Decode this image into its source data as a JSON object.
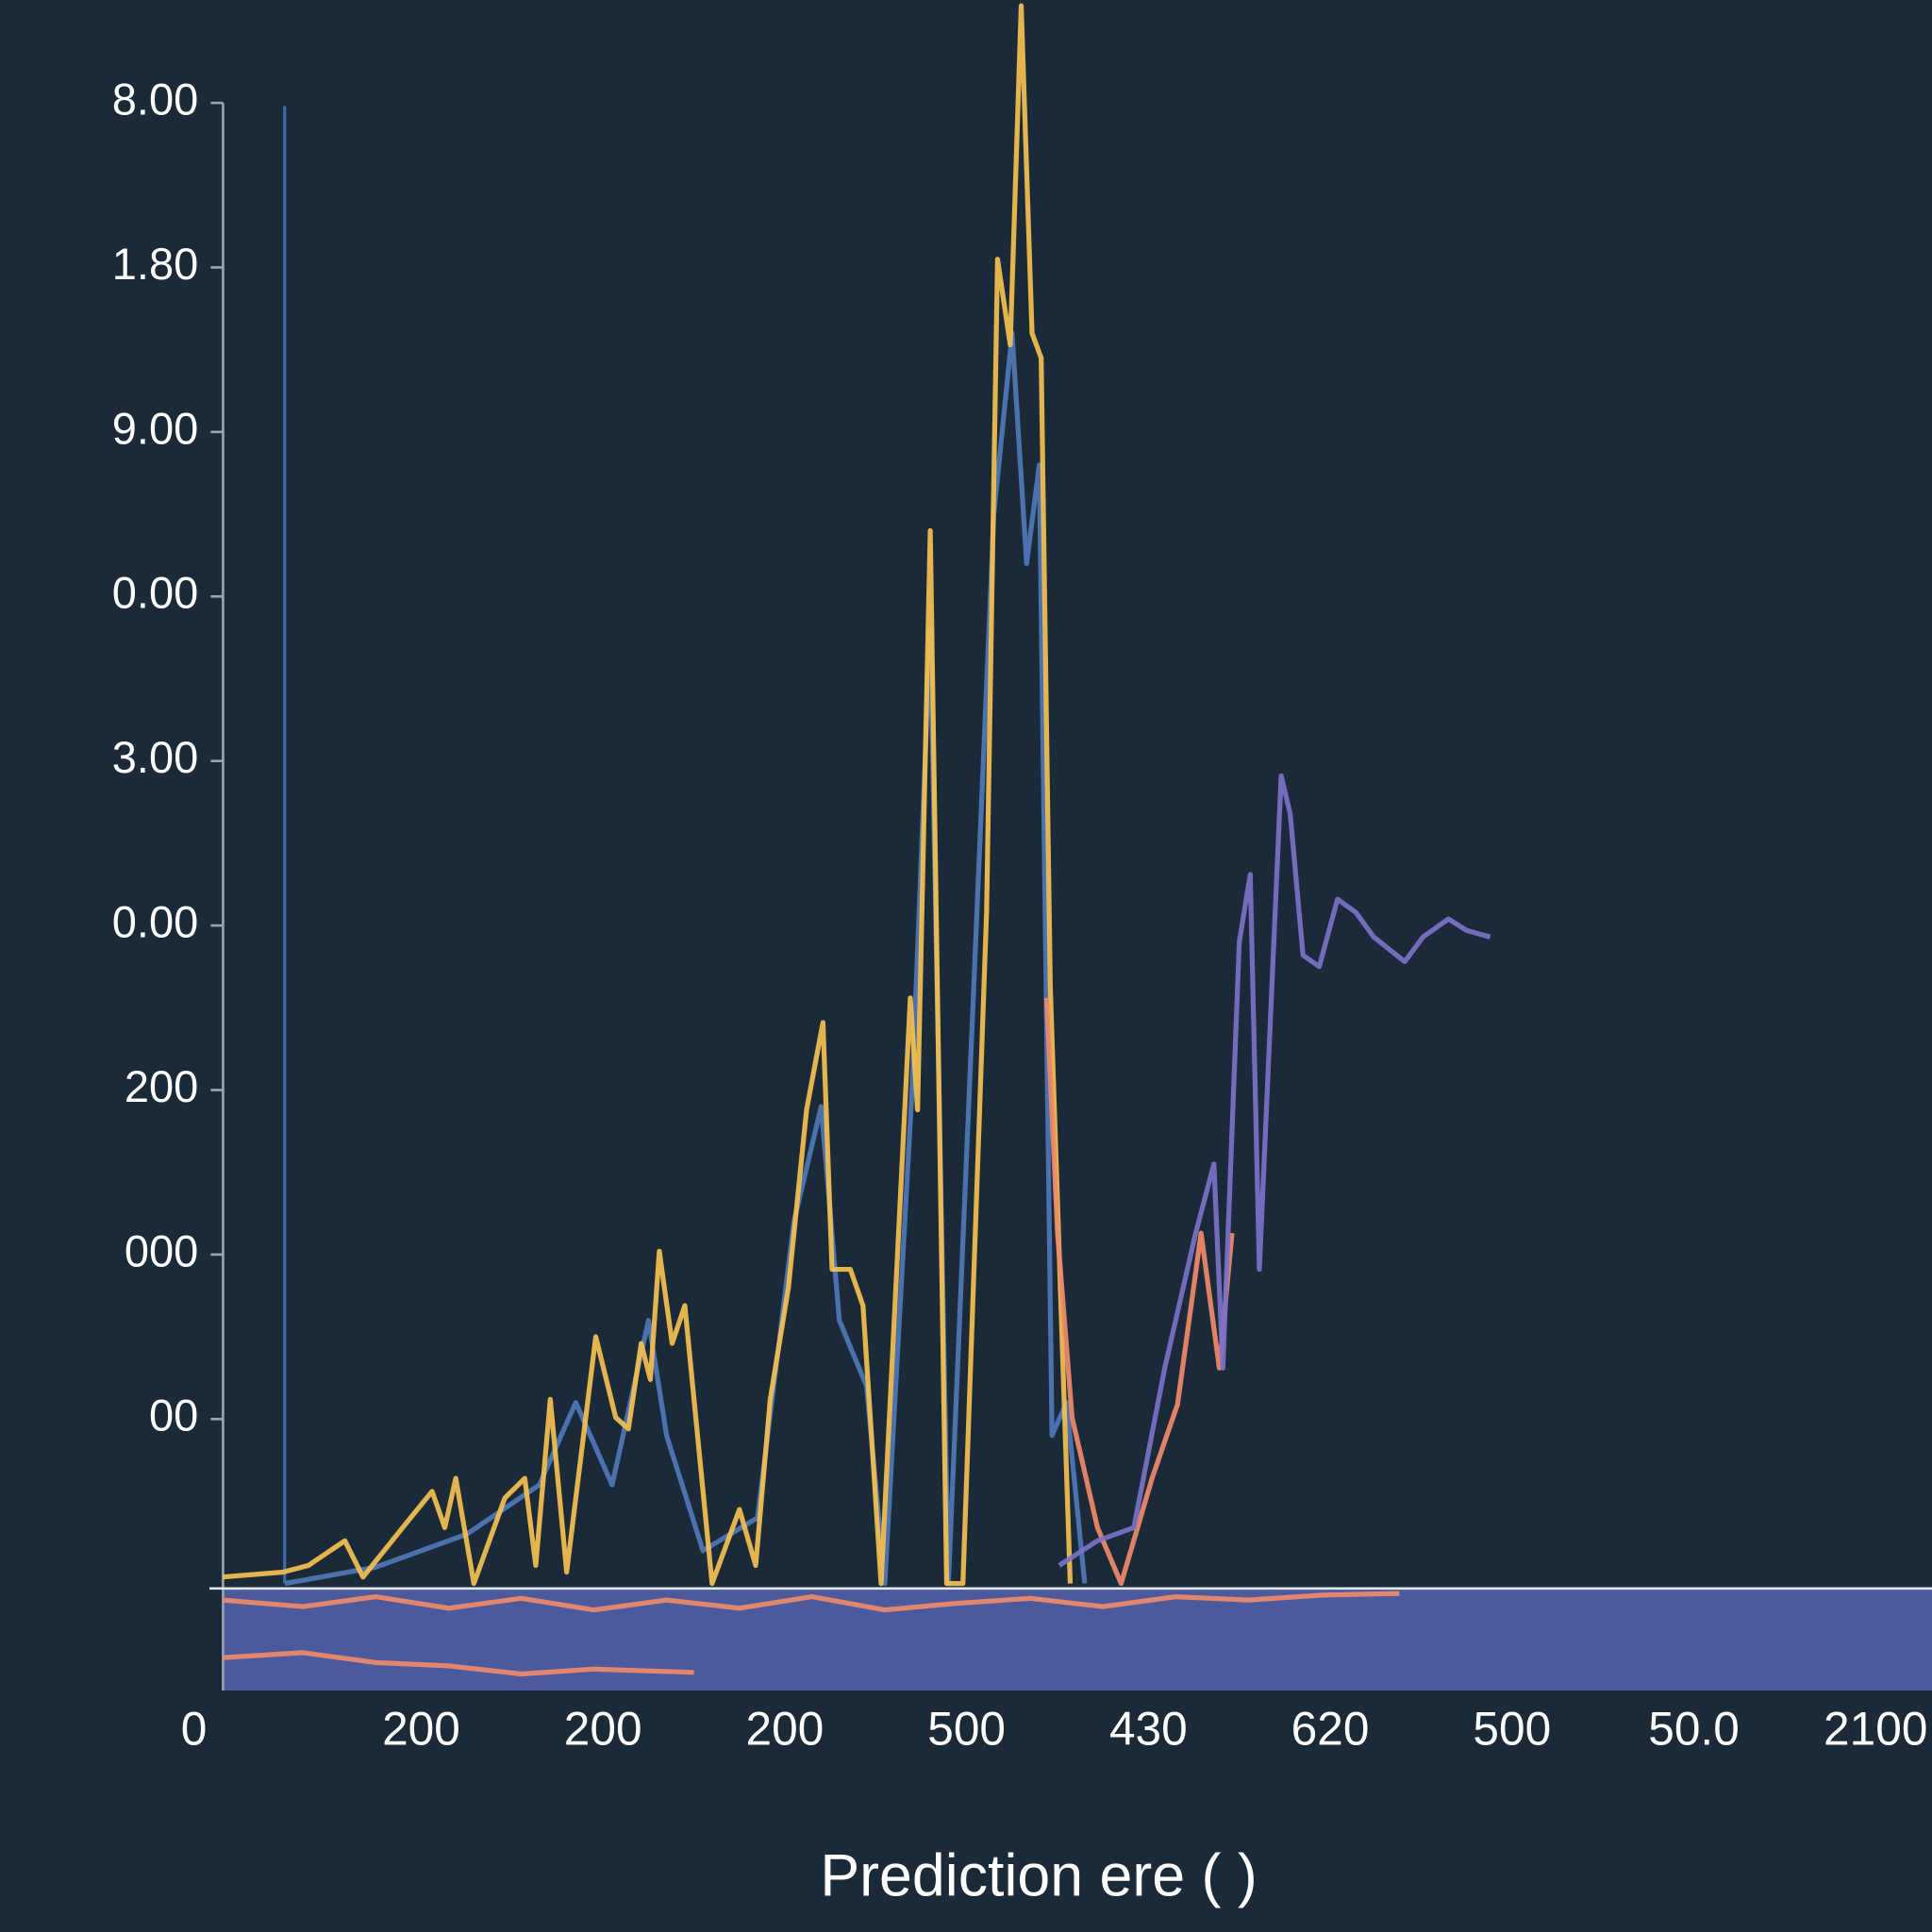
{
  "chart_data": {
    "type": "line",
    "xlabel": "Prediction ere ( )",
    "background": "#1b2a38",
    "xlim": [
      0.16,
      9.56
    ],
    "ylim": [
      -0.65,
      9.6
    ],
    "xticks": [
      {
        "value": 0,
        "label": "0"
      },
      {
        "value": 1.25,
        "label": "200"
      },
      {
        "value": 2.25,
        "label": "200"
      },
      {
        "value": 3.25,
        "label": "200"
      },
      {
        "value": 4.25,
        "label": "500"
      },
      {
        "value": 5.25,
        "label": "430"
      },
      {
        "value": 6.25,
        "label": "620"
      },
      {
        "value": 7.25,
        "label": "500"
      },
      {
        "value": 8.25,
        "label": "50.0"
      },
      {
        "value": 9.25,
        "label": "2100"
      }
    ],
    "yticks": [
      {
        "value": 1,
        "label": "00"
      },
      {
        "value": 2,
        "label": "000"
      },
      {
        "value": 3,
        "label": "200"
      },
      {
        "value": 4,
        "label": "0.00"
      },
      {
        "value": 5,
        "label": "3.00"
      },
      {
        "value": 6,
        "label": "0.00"
      },
      {
        "value": 7,
        "label": "9.00"
      },
      {
        "value": 8,
        "label": "1.80"
      },
      {
        "value": 9,
        "label": "8.00"
      }
    ],
    "series": [
      {
        "color": "#4e78b8",
        "x": [
          0.5,
          1.0,
          1.5,
          1.9,
          2.1,
          2.3,
          2.5,
          2.6,
          2.8,
          3.1,
          3.3,
          3.45,
          3.55,
          3.7,
          3.8,
          3.95,
          4.05,
          4.15,
          4.4,
          4.5,
          4.58,
          4.65,
          4.72,
          4.8,
          4.9
        ],
        "values": [
          0,
          0.1,
          0.3,
          0.6,
          1.1,
          0.6,
          1.6,
          0.9,
          0.2,
          0.4,
          2.2,
          2.9,
          1.6,
          1.2,
          0,
          3.0,
          5.8,
          0,
          6.5,
          7.6,
          6.2,
          6.8,
          0.9,
          1.1,
          0
        ]
      },
      {
        "color": "#f5c150",
        "x": [
          0.16,
          0.49,
          0.63,
          0.83,
          0.93,
          1.17,
          1.31,
          1.38,
          1.44,
          1.54,
          1.71,
          1.82,
          1.88,
          1.96,
          2.05,
          2.21,
          2.32,
          2.39,
          2.46,
          2.51,
          2.56,
          2.63,
          2.7,
          2.85,
          3.0,
          3.09,
          3.17,
          3.27,
          3.37,
          3.46,
          3.51,
          3.61,
          3.68,
          3.78,
          3.94,
          3.98,
          4.05,
          4.14,
          4.23,
          4.36,
          4.42,
          4.49,
          4.55,
          4.61,
          4.66,
          4.71,
          4.82
        ],
        "values": [
          0.04,
          0.07,
          0.11,
          0.26,
          0.04,
          0.37,
          0.56,
          0.34,
          0.64,
          0,
          0.52,
          0.64,
          0.11,
          1.12,
          0.07,
          1.5,
          1.01,
          0.94,
          1.46,
          1.24,
          2.02,
          1.46,
          1.69,
          0,
          0.45,
          0.11,
          1.12,
          1.8,
          2.88,
          3.41,
          1.91,
          1.91,
          1.69,
          0,
          3.56,
          2.88,
          6.4,
          0,
          0,
          4.08,
          8.05,
          7.53,
          9.59,
          7.6,
          7.45,
          3.63,
          0
        ]
      },
      {
        "color": "#f08a6a",
        "x": [
          4.69,
          4.75,
          4.83,
          4.97,
          5.1,
          5.27,
          5.41,
          5.54,
          5.64,
          5.71
        ],
        "values": [
          3.56,
          2.13,
          1.01,
          0.34,
          0,
          0.64,
          1.09,
          2.13,
          1.31,
          2.13
        ]
      },
      {
        "color": "#7b72c8",
        "x": [
          4.76,
          4.97,
          5.17,
          5.34,
          5.51,
          5.61,
          5.66,
          5.75,
          5.81,
          5.86,
          5.98,
          6.03,
          6.1,
          6.19,
          6.29,
          6.39,
          6.49,
          6.66,
          6.76,
          6.9,
          7.0,
          7.13
        ],
        "values": [
          0.11,
          0.26,
          0.34,
          1.31,
          2.13,
          2.55,
          1.31,
          3.9,
          4.31,
          1.91,
          4.91,
          4.68,
          3.82,
          3.75,
          4.16,
          4.08,
          3.93,
          3.78,
          3.93,
          4.04,
          3.97,
          3.93
        ]
      },
      {
        "color": "#f08a6a",
        "x": [
          0.16,
          0.6,
          1.0,
          1.4,
          1.8,
          2.2,
          2.6,
          3.0,
          3.4,
          3.8,
          4.2,
          4.6,
          5.0,
          5.4,
          5.8,
          6.2,
          6.63
        ],
        "values": [
          -0.1,
          -0.14,
          -0.08,
          -0.15,
          -0.09,
          -0.16,
          -0.1,
          -0.15,
          -0.08,
          -0.16,
          -0.12,
          -0.09,
          -0.14,
          -0.08,
          -0.1,
          -0.07,
          -0.06
        ]
      },
      {
        "color": "#f08a6a",
        "x": [
          0.16,
          0.6,
          1.0,
          1.4,
          1.8,
          2.2,
          2.75
        ],
        "values": [
          -0.45,
          -0.42,
          -0.48,
          -0.5,
          -0.55,
          -0.52,
          -0.54
        ]
      }
    ]
  }
}
